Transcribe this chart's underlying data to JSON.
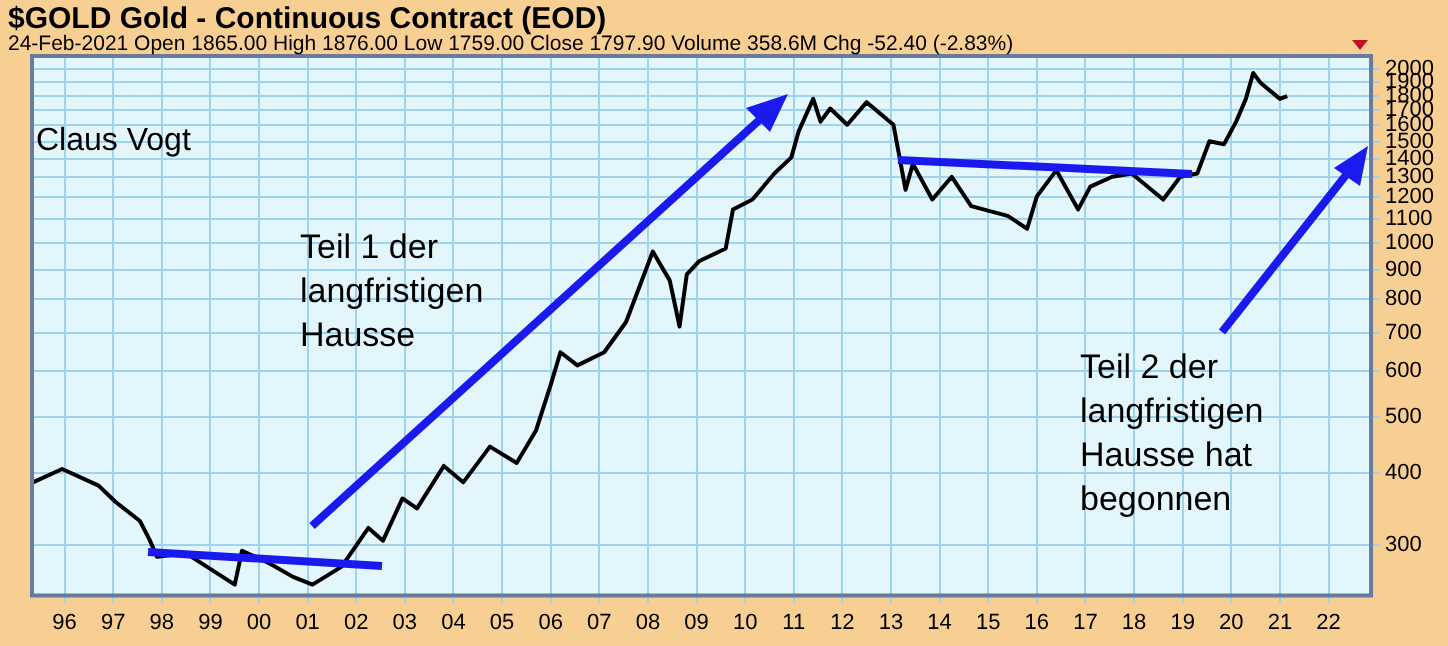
{
  "chart_data": {
    "type": "line",
    "title": "$GOLD Gold - Continuous Contract (EOD)",
    "subtitle": "24-Feb-2021 Open 1865.00 High 1876.00 Low 1759.00 Close 1797.90 Volume 358.6M Chg -52.40 (-2.83%)",
    "annotations": [
      "Claus Vogt",
      "Teil 1 der langfristigen Hausse",
      "Teil 2 der langfristigen Hausse hat begonnen"
    ],
    "x": [
      1995.35,
      1995.95,
      1996.7,
      1997.05,
      1997.55,
      1997.75,
      1997.9,
      1998.5,
      1999.5,
      1999.65,
      2000.2,
      2000.7,
      2001.1,
      2001.7,
      2002.25,
      2002.55,
      2002.95,
      2003.25,
      2003.8,
      2004.2,
      2004.75,
      2005.3,
      2005.7,
      2006.0,
      2006.2,
      2006.55,
      2007.1,
      2007.55,
      2008.1,
      2008.45,
      2008.65,
      2008.8,
      2009.05,
      2009.6,
      2009.75,
      2010.15,
      2010.6,
      2010.95,
      2011.1,
      2011.4,
      2011.55,
      2011.75,
      2012.1,
      2012.5,
      2013.05,
      2013.3,
      2013.45,
      2013.85,
      2014.25,
      2014.65,
      2015.4,
      2015.8,
      2016.0,
      2016.4,
      2016.85,
      2017.1,
      2017.55,
      2017.95,
      2018.6,
      2018.95,
      2019.3,
      2019.55,
      2019.85,
      2020.1,
      2020.3,
      2020.45,
      2020.6,
      2021.0,
      2021.15
    ],
    "series": [
      {
        "color": "#000000",
        "values": [
          385,
          406,
          380,
          356,
          330,
          306,
          286,
          290,
          256,
          293,
          279,
          264,
          256,
          275,
          321,
          305,
          361,
          347,
          411,
          385,
          444,
          416,
          474,
          568,
          647,
          614,
          647,
          730,
          967,
          861,
          717,
          883,
          930,
          979,
          1144,
          1190,
          1320,
          1408,
          1562,
          1778,
          1624,
          1711,
          1604,
          1755,
          1604,
          1237,
          1372,
          1190,
          1303,
          1159,
          1115,
          1059,
          1205,
          1337,
          1144,
          1253,
          1303,
          1320,
          1190,
          1303,
          1320,
          1502,
          1484,
          1624,
          1778,
          1972,
          1897,
          1778,
          1798
        ]
      }
    ],
    "xlim": [
      1995.33,
      2022.875
    ],
    "xticks": [
      {
        "value": 1996,
        "label": "96"
      },
      {
        "value": 1997,
        "label": "97"
      },
      {
        "value": 1998,
        "label": "98"
      },
      {
        "value": 1999,
        "label": "99"
      },
      {
        "value": 2000,
        "label": "00"
      },
      {
        "value": 2001,
        "label": "01"
      },
      {
        "value": 2002,
        "label": "02"
      },
      {
        "value": 2003,
        "label": "03"
      },
      {
        "value": 2004,
        "label": "04"
      },
      {
        "value": 2005,
        "label": "05"
      },
      {
        "value": 2006,
        "label": "06"
      },
      {
        "value": 2007,
        "label": "07"
      },
      {
        "value": 2008,
        "label": "08"
      },
      {
        "value": 2009,
        "label": "09"
      },
      {
        "value": 2010,
        "label": "10"
      },
      {
        "value": 2011,
        "label": "11"
      },
      {
        "value": 2012,
        "label": "12"
      },
      {
        "value": 2013,
        "label": "13"
      },
      {
        "value": 2014,
        "label": "14"
      },
      {
        "value": 2015,
        "label": "15"
      },
      {
        "value": 2016,
        "label": "16"
      },
      {
        "value": 2017,
        "label": "17"
      },
      {
        "value": 2018,
        "label": "18"
      },
      {
        "value": 2019,
        "label": "19"
      },
      {
        "value": 2020,
        "label": "20"
      },
      {
        "value": 2021,
        "label": "21"
      },
      {
        "value": 2022,
        "label": "22"
      }
    ],
    "ylim": [
      245,
      2110
    ],
    "yticks": [
      300,
      400,
      500,
      600,
      700,
      800,
      900,
      1000,
      1100,
      1200,
      1300,
      1400,
      1500,
      1600,
      1700,
      1800,
      1900,
      2000
    ],
    "log": true,
    "grid": true,
    "legend": false,
    "marker": "none",
    "line_style": "solid"
  }
}
